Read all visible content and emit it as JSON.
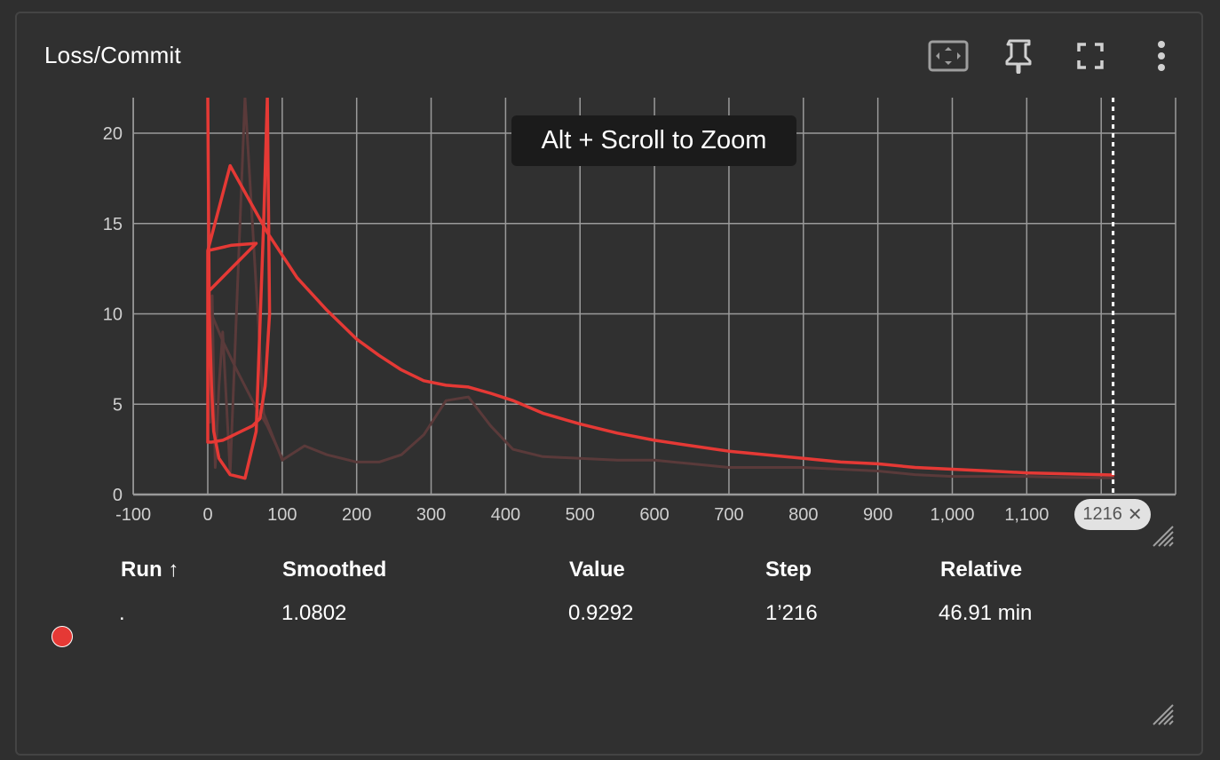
{
  "card": {
    "title": "Loss/Commit",
    "zoom_hint": "Alt + Scroll to Zoom",
    "toolbar": {
      "fit_icon": "fit-domain-icon",
      "pin_icon": "pin-icon",
      "fullscreen_icon": "fullscreen-icon",
      "more_icon": "more-vert-icon"
    }
  },
  "chart_data": {
    "type": "line",
    "title": "",
    "xlabel": "",
    "ylabel": "",
    "xlim": [
      -100,
      1300
    ],
    "ylim": [
      0,
      22
    ],
    "x_ticks": [
      "-100",
      "0",
      "100",
      "200",
      "300",
      "400",
      "500",
      "600",
      "700",
      "800",
      "900",
      "1,000",
      "1,100",
      "1,200"
    ],
    "y_ticks": [
      "0",
      "5",
      "10",
      "15",
      "20"
    ],
    "grid": true,
    "cursor_step": 1216,
    "cursor_label": "1216",
    "colors": {
      "smoothed": "#e53935",
      "raw": "#5a3a3a",
      "grid": "#9a9a9a",
      "cursor": "#ffffff"
    },
    "series": [
      {
        "kind": "raw",
        "x": [
          0,
          3,
          6,
          10,
          15,
          20,
          30,
          50,
          75,
          100,
          130,
          160,
          200,
          230,
          260,
          290,
          320,
          350,
          380,
          410,
          450,
          500,
          550,
          600,
          650,
          700,
          750,
          800,
          850,
          900,
          950,
          1000,
          1050,
          1100,
          1150,
          1200,
          1216
        ],
        "y": [
          21,
          4,
          11,
          1.5,
          6,
          9,
          1.2,
          22,
          4.5,
          1.9,
          2.7,
          2.2,
          1.8,
          1.8,
          2.2,
          3.3,
          5.2,
          5.4,
          3.8,
          2.5,
          2.1,
          2.0,
          1.9,
          1.9,
          1.7,
          1.5,
          1.5,
          1.5,
          1.4,
          1.3,
          1.1,
          1.0,
          1.0,
          1.0,
          0.95,
          0.93,
          0.9292
        ]
      },
      {
        "kind": "raw",
        "x": [
          0,
          10,
          20,
          40,
          60,
          80,
          100
        ],
        "y": [
          10.5,
          9.5,
          8.5,
          6.8,
          5.2,
          3.8,
          2.0
        ]
      },
      {
        "kind": "smoothed",
        "x": [
          0,
          2,
          5,
          8,
          15,
          30,
          50,
          65,
          75,
          80,
          83,
          77,
          70,
          60,
          40,
          30,
          20,
          5,
          0,
          0,
          32,
          65,
          0,
          0,
          30,
          80,
          120,
          160,
          200,
          230,
          260,
          290,
          320,
          350,
          380,
          410,
          450,
          500,
          550,
          600,
          650,
          700,
          750,
          800,
          850,
          900,
          950,
          1000,
          1050,
          1100,
          1150,
          1200,
          1216
        ],
        "y": [
          22,
          10,
          6,
          3.5,
          2.0,
          1.1,
          0.9,
          3.5,
          15,
          22,
          10,
          6,
          4.2,
          3.8,
          3.4,
          3.2,
          3.0,
          2.9,
          2.9,
          13.5,
          13.8,
          13.9,
          11.2,
          13.5,
          18.2,
          14.5,
          12.0,
          10.2,
          8.6,
          7.7,
          6.9,
          6.3,
          6.05,
          5.95,
          5.6,
          5.2,
          4.5,
          3.9,
          3.4,
          3.0,
          2.7,
          2.4,
          2.2,
          2.0,
          1.8,
          1.7,
          1.5,
          1.4,
          1.3,
          1.2,
          1.15,
          1.1,
          1.0802
        ]
      }
    ]
  },
  "table": {
    "headers": {
      "run": "Run ↑",
      "smoothed": "Smoothed",
      "value": "Value",
      "step": "Step",
      "relative": "Relative"
    },
    "rows": [
      {
        "run": ".",
        "smoothed": "1.0802",
        "value": "0.9292",
        "step": "1’216",
        "relative": "46.91 min",
        "color": "#e53935"
      }
    ]
  }
}
